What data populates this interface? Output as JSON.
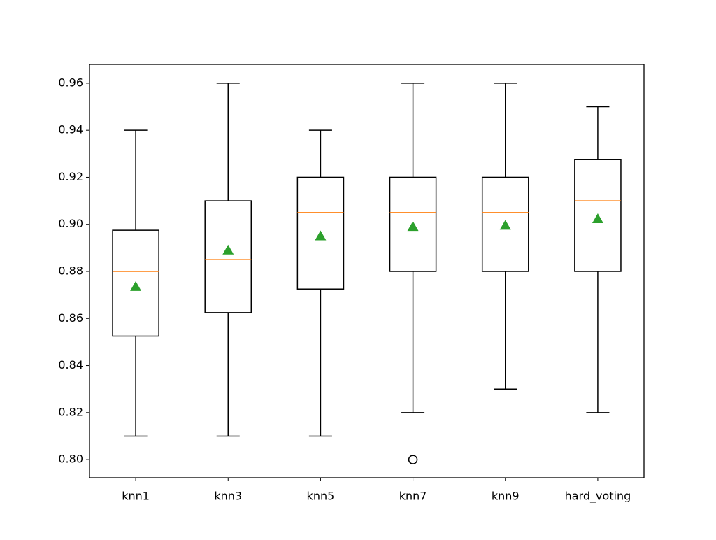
{
  "chart_data": {
    "type": "box",
    "categories": [
      "knn1",
      "knn3",
      "knn5",
      "knn7",
      "knn9",
      "hard_voting"
    ],
    "boxes": [
      {
        "low": 0.81,
        "q1": 0.8525,
        "median": 0.88,
        "q3": 0.8975,
        "high": 0.94,
        "mean": 0.8735,
        "outliers": []
      },
      {
        "low": 0.81,
        "q1": 0.8625,
        "median": 0.885,
        "q3": 0.91,
        "high": 0.96,
        "mean": 0.889,
        "outliers": []
      },
      {
        "low": 0.81,
        "q1": 0.8725,
        "median": 0.905,
        "q3": 0.92,
        "high": 0.94,
        "mean": 0.895,
        "outliers": []
      },
      {
        "low": 0.82,
        "q1": 0.88,
        "median": 0.905,
        "q3": 0.92,
        "high": 0.96,
        "mean": 0.899,
        "outliers": [
          0.8
        ]
      },
      {
        "low": 0.83,
        "q1": 0.88,
        "median": 0.905,
        "q3": 0.92,
        "high": 0.96,
        "mean": 0.8995,
        "outliers": []
      },
      {
        "low": 0.82,
        "q1": 0.88,
        "median": 0.91,
        "q3": 0.9275,
        "high": 0.95,
        "mean": 0.9023,
        "outliers": []
      }
    ],
    "median_color": "#ff7f0e",
    "mean_color": "#2ca02c",
    "ylim": [
      0.7923,
      0.968
    ],
    "yticks": [
      {
        "value": 0.8,
        "label": "0.80"
      },
      0.82,
      0.84,
      0.86,
      0.88,
      {
        "value": 0.9,
        "label": "0.90"
      },
      0.92,
      0.94,
      0.96
    ]
  }
}
